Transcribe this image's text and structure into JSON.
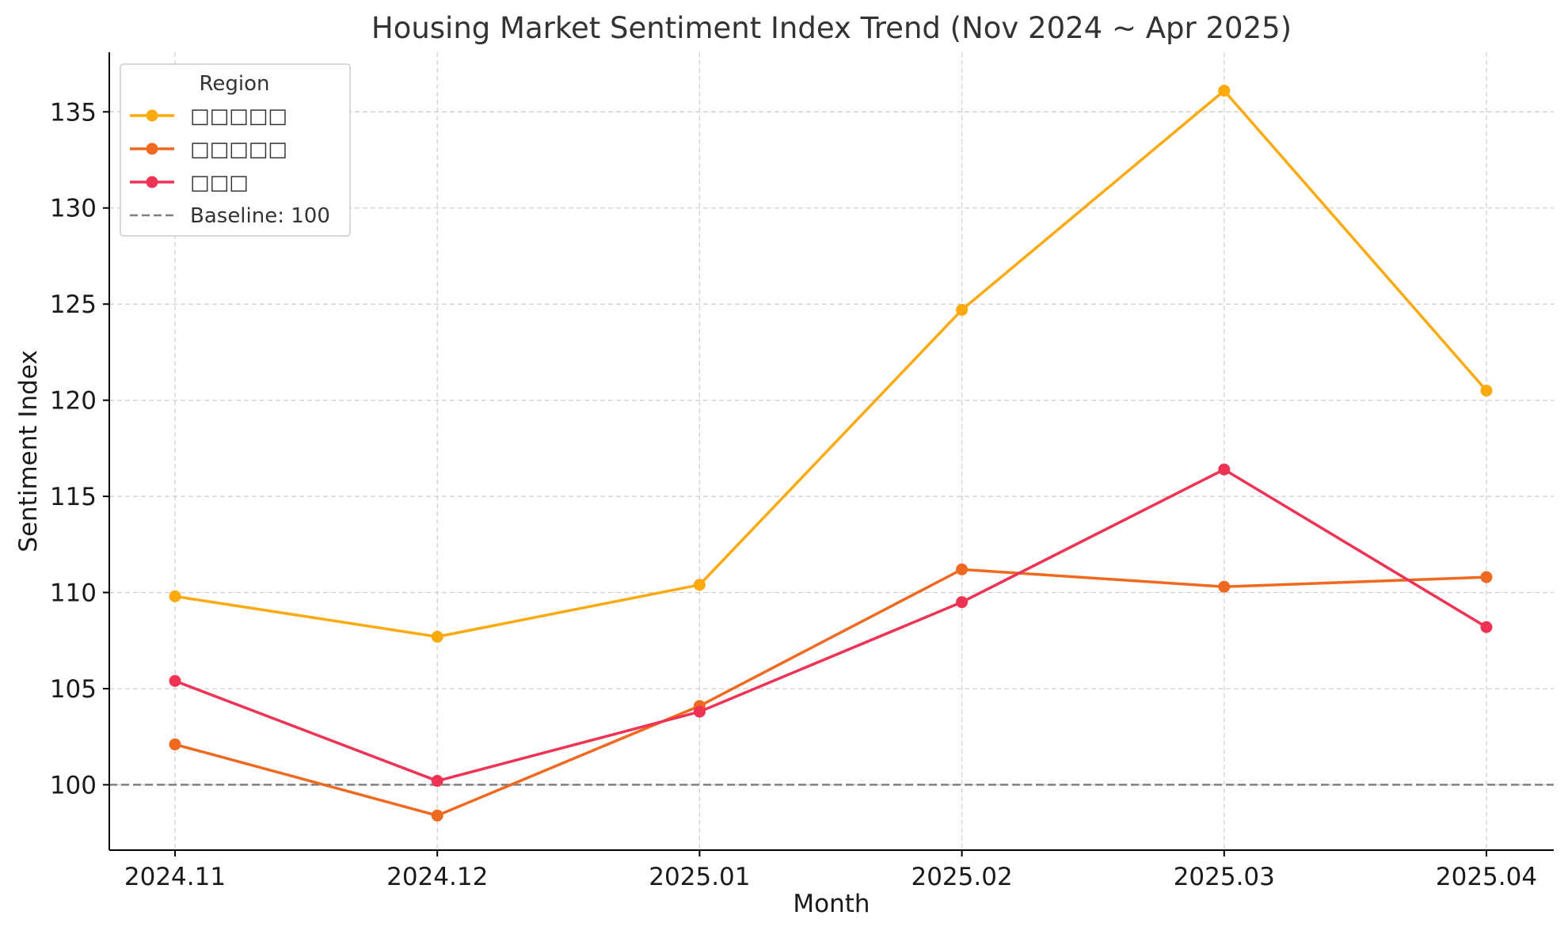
{
  "chart_data": {
    "type": "line",
    "title": "Housing Market Sentiment Index Trend (Nov 2024 ~ Apr 2025)",
    "xlabel": "Month",
    "ylabel": "Sentiment Index",
    "categories": [
      "2024.11",
      "2024.12",
      "2025.01",
      "2025.02",
      "2025.03",
      "2025.04"
    ],
    "ylim": [
      96.6,
      138.1
    ],
    "yticks": [
      100,
      105,
      110,
      115,
      120,
      125,
      130,
      135
    ],
    "grid": true,
    "legend": {
      "title": "Region",
      "placement": "top-left"
    },
    "series": [
      {
        "name": "□□□□□",
        "color": "#FBAA0E",
        "values": [
          109.8,
          107.7,
          110.4,
          124.7,
          136.1,
          120.5
        ]
      },
      {
        "name": "□□□□□",
        "color": "#EF6A20",
        "values": [
          102.1,
          98.4,
          104.1,
          111.2,
          110.3,
          110.8
        ]
      },
      {
        "name": "□□□",
        "color": "#EE3355",
        "values": [
          105.4,
          100.2,
          103.8,
          109.5,
          116.4,
          108.2
        ]
      }
    ],
    "reference_line": {
      "label": "Baseline: 100",
      "value": 100,
      "color": "#808080",
      "style": "dashed"
    }
  }
}
